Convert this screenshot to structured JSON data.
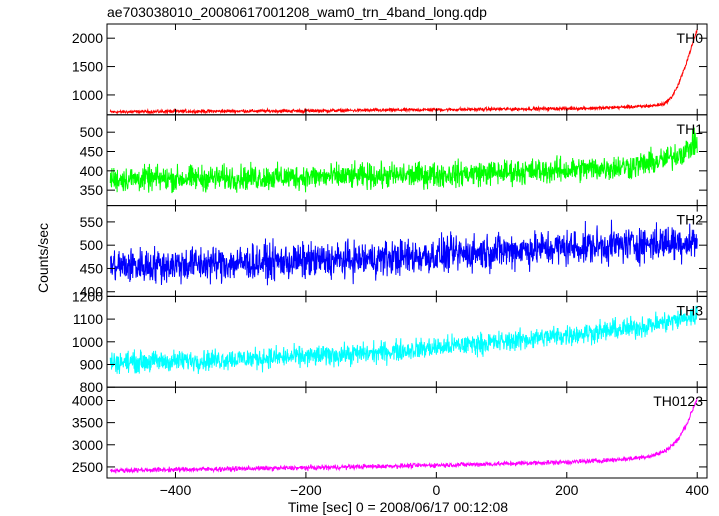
{
  "chart_data": {
    "type": "line",
    "title": "ae703038010_20080617001208_wam0_trn_4band_long.qdp",
    "xlabel": "Time [sec] 0 = 2008/06/17 00:12:08",
    "ylabel": "Counts/sec",
    "xlim": [
      -505,
      415
    ],
    "xticks": [
      -400,
      -200,
      0,
      200,
      400
    ],
    "grid": false,
    "series": [
      {
        "name": "TH0",
        "color": "#ff0000",
        "ylim": [
          650,
          2250
        ],
        "yticks": [
          1000,
          1500,
          2000
        ],
        "x": [
          -500,
          -400,
          -300,
          -200,
          -100,
          0,
          100,
          200,
          250,
          300,
          320,
          340,
          350,
          360,
          370,
          380,
          390,
          400
        ],
        "values": [
          700,
          710,
          715,
          720,
          730,
          740,
          750,
          760,
          770,
          790,
          800,
          820,
          850,
          950,
          1150,
          1450,
          1800,
          2150
        ],
        "noise": 25
      },
      {
        "name": "TH1",
        "color": "#00ff00",
        "ylim": [
          310,
          545
        ],
        "yticks": [
          350,
          400,
          450,
          500
        ],
        "x": [
          -500,
          -400,
          -300,
          -200,
          -100,
          0,
          100,
          200,
          300,
          350,
          380,
          400
        ],
        "values": [
          378,
          380,
          382,
          384,
          386,
          390,
          396,
          402,
          412,
          428,
          450,
          475
        ],
        "noise": 28
      },
      {
        "name": "TH2",
        "color": "#0000ff",
        "ylim": [
          390,
          585
        ],
        "yticks": [
          400,
          450,
          500,
          550
        ],
        "x": [
          -500,
          -400,
          -300,
          -200,
          -100,
          0,
          100,
          200,
          300,
          400
        ],
        "values": [
          455,
          458,
          462,
          466,
          470,
          478,
          488,
          495,
          502,
          508
        ],
        "noise": 33
      },
      {
        "name": "TH3",
        "color": "#00ffff",
        "ylim": [
          800,
          1200
        ],
        "yticks": [
          800,
          900,
          1000,
          1100,
          1200
        ],
        "x": [
          -500,
          -400,
          -300,
          -200,
          -100,
          0,
          100,
          200,
          300,
          350,
          400
        ],
        "values": [
          910,
          915,
          925,
          935,
          950,
          975,
          1000,
          1030,
          1060,
          1085,
          1115
        ],
        "noise": 40
      },
      {
        "name": "TH0123",
        "color": "#ff00ff",
        "ylim": [
          2250,
          4300
        ],
        "yticks": [
          2500,
          3000,
          3500,
          4000
        ],
        "x": [
          -500,
          -400,
          -300,
          -200,
          -100,
          0,
          100,
          200,
          250,
          300,
          330,
          350,
          370,
          385,
          400
        ],
        "values": [
          2420,
          2440,
          2460,
          2480,
          2510,
          2540,
          2570,
          2610,
          2640,
          2690,
          2750,
          2850,
          3100,
          3500,
          4050
        ],
        "noise": 45
      }
    ]
  }
}
